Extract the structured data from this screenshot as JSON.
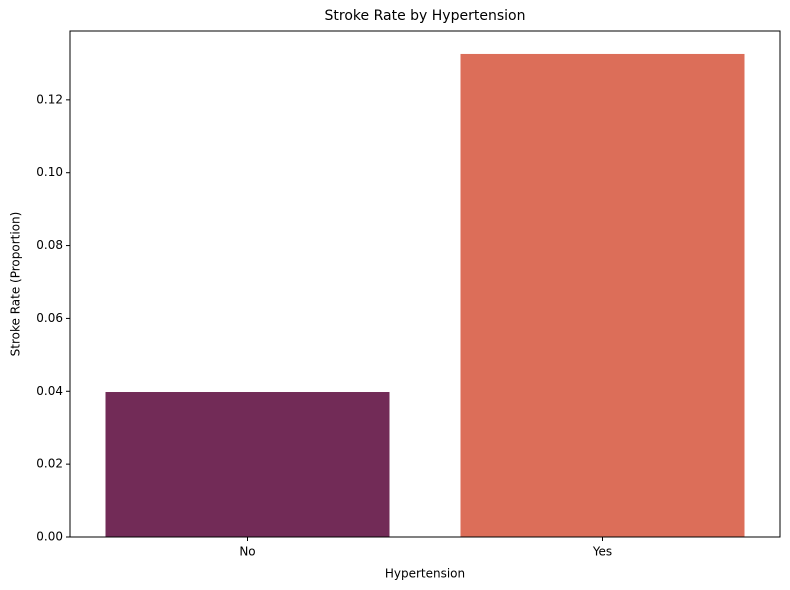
{
  "chart_data": {
    "type": "bar",
    "title": "Stroke Rate by Hypertension",
    "x_label": "Hypertension",
    "y_label": "Stroke Rate (Proportion)",
    "categories": [
      "No",
      "Yes"
    ],
    "values": [
      0.0398,
      0.1326
    ],
    "colors": [
      "#722b57",
      "#dc6e59"
    ],
    "ylim": [
      0,
      0.1389
    ],
    "yticks": [
      {
        "value": 0,
        "label": "0.00"
      },
      0.02,
      0.04,
      0.06,
      0.08,
      {
        "value": 0.1,
        "label": "0.10"
      },
      0.12
    ],
    "grid": false
  }
}
